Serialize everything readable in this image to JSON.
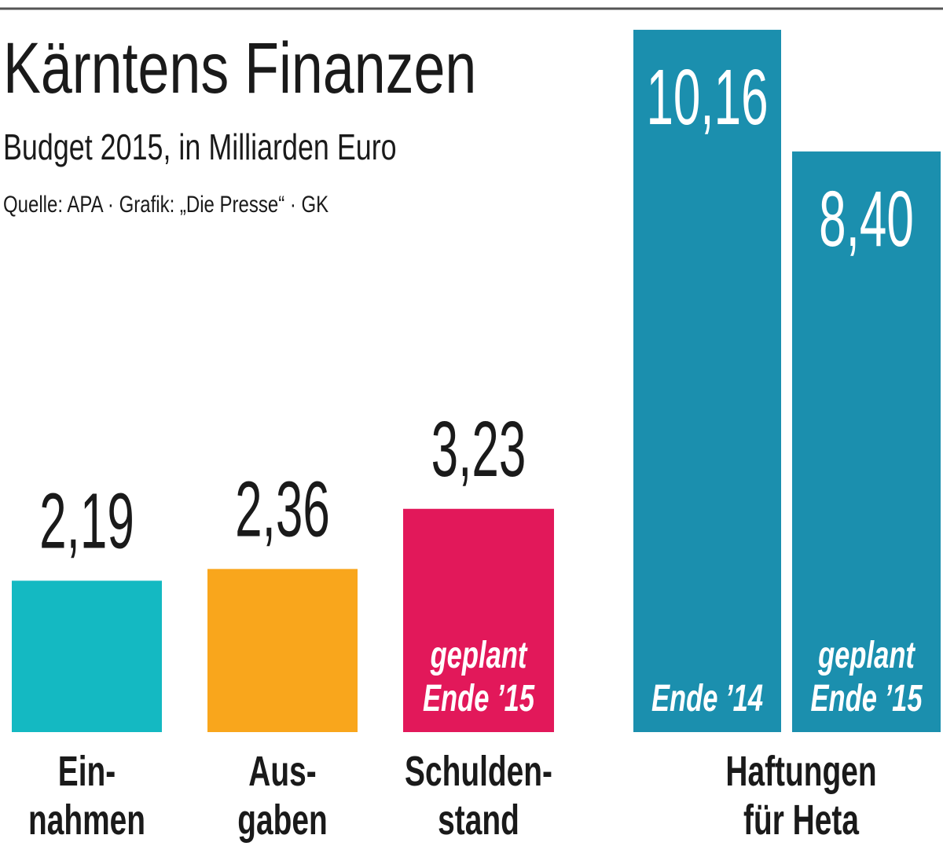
{
  "chart_data": {
    "type": "bar",
    "title": "Kärntens Finanzen",
    "subtitle": "Budget 2015, in Milliarden Euro",
    "source": "Quelle: APA · Grafik: „Die Presse“ · GK",
    "categories": [
      [
        "Ein-",
        "nahmen"
      ],
      [
        "Aus-",
        "gaben"
      ],
      [
        "Schulden-",
        "stand"
      ],
      [
        "Haftungen",
        "für Heta"
      ],
      null
    ],
    "values": [
      2.19,
      2.36,
      3.23,
      10.16,
      8.4
    ],
    "value_labels": [
      "2,19",
      "2,36",
      "3,23",
      "10,16",
      "8,40"
    ],
    "colors": [
      "#14b9c2",
      "#f9a61c",
      "#e2185a",
      "#1b8fae",
      "#1b8fae"
    ],
    "bar_notes": [
      null,
      null,
      [
        "geplant",
        "Ende ’15"
      ],
      [
        "Ende ’14"
      ],
      [
        "geplant",
        "Ende ’15"
      ]
    ]
  }
}
